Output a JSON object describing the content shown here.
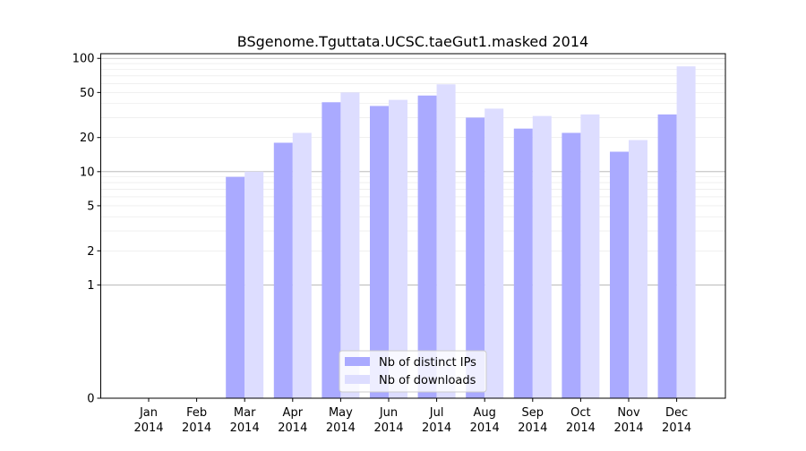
{
  "chart_data": {
    "type": "bar",
    "title": "BSgenome.Tguttata.UCSC.taeGut1.masked 2014",
    "xlabel": "",
    "ylabel": "",
    "y_scale": "symlog",
    "ylim": [
      0,
      110
    ],
    "y_ticks": [
      {
        "value": 0,
        "label": "0"
      },
      {
        "value": 1,
        "label": "1"
      },
      {
        "value": 2,
        "label": "2"
      },
      {
        "value": 5,
        "label": "5"
      },
      {
        "value": 10,
        "label": "10"
      },
      {
        "value": 20,
        "label": "20"
      },
      {
        "value": 50,
        "label": "50"
      },
      {
        "value": 100,
        "label": "100"
      }
    ],
    "categories": [
      {
        "month": "Jan",
        "year": "2014"
      },
      {
        "month": "Feb",
        "year": "2014"
      },
      {
        "month": "Mar",
        "year": "2014"
      },
      {
        "month": "Apr",
        "year": "2014"
      },
      {
        "month": "May",
        "year": "2014"
      },
      {
        "month": "Jun",
        "year": "2014"
      },
      {
        "month": "Jul",
        "year": "2014"
      },
      {
        "month": "Aug",
        "year": "2014"
      },
      {
        "month": "Sep",
        "year": "2014"
      },
      {
        "month": "Oct",
        "year": "2014"
      },
      {
        "month": "Nov",
        "year": "2014"
      },
      {
        "month": "Dec",
        "year": "2014"
      }
    ],
    "series": [
      {
        "name": "Nb of distinct IPs",
        "color": "#aaaaff",
        "values": [
          0,
          0,
          9,
          18,
          41,
          38,
          47,
          30,
          24,
          22,
          15,
          32
        ]
      },
      {
        "name": "Nb of downloads",
        "color": "#ddddff",
        "values": [
          0,
          0,
          10,
          22,
          50,
          43,
          59,
          36,
          31,
          32,
          19,
          85
        ]
      }
    ],
    "grid": {
      "major": true,
      "minor": true
    },
    "legend_position": "bottom-center"
  }
}
